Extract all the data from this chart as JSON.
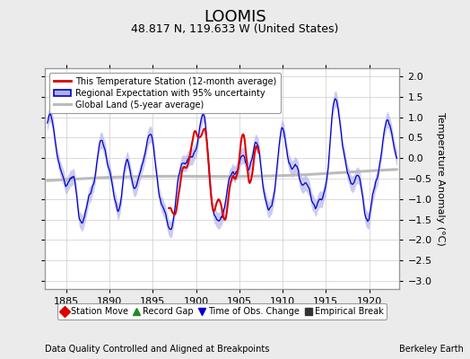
{
  "title": "LOOMIS",
  "subtitle": "48.817 N, 119.633 W (United States)",
  "ylabel": "Temperature Anomaly (°C)",
  "footer_left": "Data Quality Controlled and Aligned at Breakpoints",
  "footer_right": "Berkeley Earth",
  "xlim": [
    1882.5,
    1923.5
  ],
  "ylim": [
    -3.2,
    2.2
  ],
  "yticks": [
    -3,
    -2.5,
    -2,
    -1.5,
    -1,
    -0.5,
    0,
    0.5,
    1,
    1.5,
    2
  ],
  "xticks": [
    1885,
    1890,
    1895,
    1900,
    1905,
    1910,
    1915,
    1920
  ],
  "bg_color": "#ebebeb",
  "plot_bg_color": "#ffffff",
  "grid_color": "#cccccc",
  "regional_line_color": "#0000cc",
  "regional_fill_color": "#b0b0e8",
  "station_line_color": "#dd0000",
  "global_line_color": "#bbbbbb",
  "title_fontsize": 13,
  "subtitle_fontsize": 9,
  "tick_fontsize": 8,
  "footer_fontsize": 7,
  "legend1_labels": [
    "This Temperature Station (12-month average)",
    "Regional Expectation with 95% uncertainty",
    "Global Land (5-year average)"
  ],
  "legend2_labels": [
    "Station Move",
    "Record Gap",
    "Time of Obs. Change",
    "Empirical Break"
  ],
  "legend2_colors": [
    "#dd0000",
    "#228B22",
    "#0000cc",
    "#333333"
  ],
  "legend2_markers": [
    "D",
    "^",
    "v",
    "s"
  ]
}
